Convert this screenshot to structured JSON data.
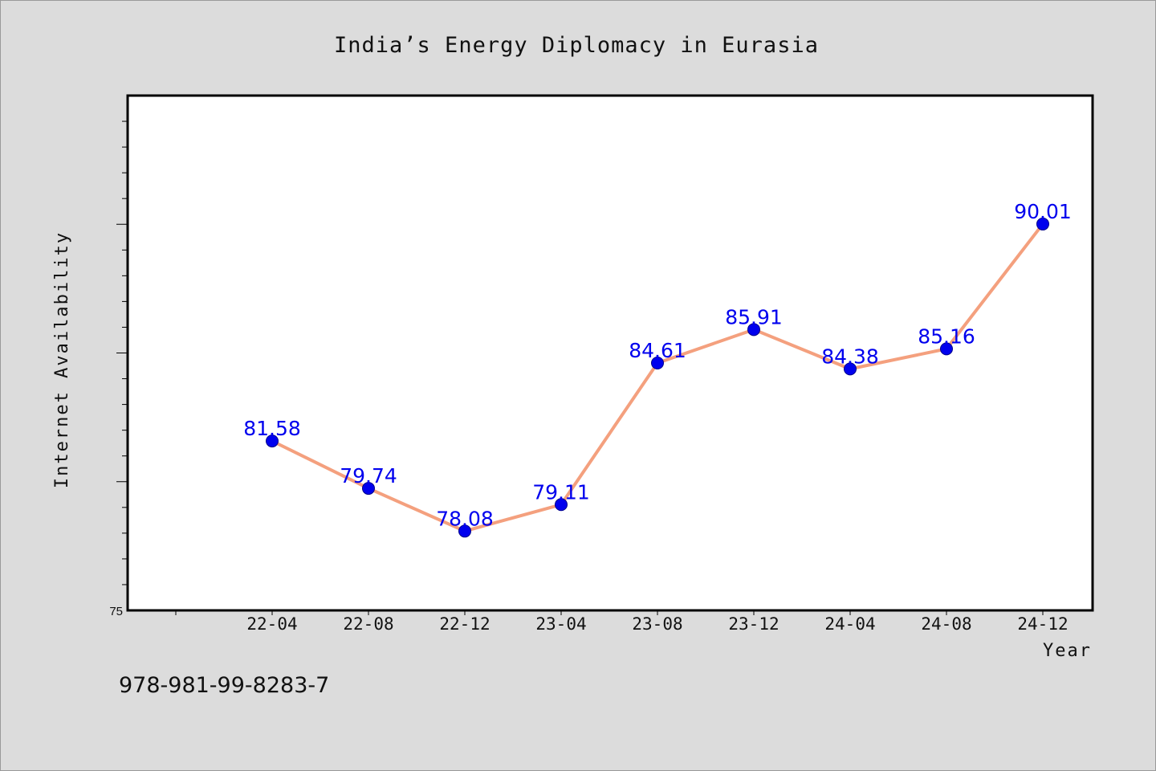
{
  "chart_data": {
    "type": "line",
    "title": "India’s Energy Diplomacy in Eurasia",
    "xlabel": "Year",
    "ylabel": "Internet Availability",
    "categories": [
      "22-04",
      "22-08",
      "22-12",
      "23-04",
      "23-08",
      "23-12",
      "24-04",
      "24-08",
      "24-12"
    ],
    "series": [
      {
        "values": [
          81.58,
          79.74,
          78.08,
          79.11,
          84.61,
          85.91,
          84.38,
          85.16,
          90.01
        ]
      }
    ],
    "ylim": [
      75,
      95
    ],
    "ytick_labels_shown": [
      "75"
    ],
    "data_labels": true,
    "grid": false,
    "legend": "none",
    "colors": {
      "line": "#f4a07e",
      "marker": "#0000ee",
      "label": "#0000ee",
      "background": "#dcdcdc",
      "plot_background": "#ffffff"
    }
  },
  "footer": {
    "isbn": "978-981-99-8283-7"
  }
}
